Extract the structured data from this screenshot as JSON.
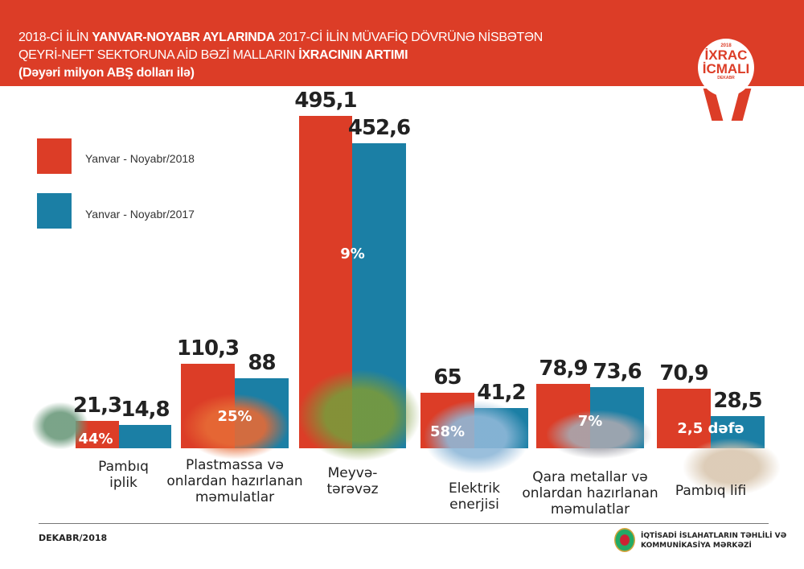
{
  "header": {
    "line1_a": "2018-Cİ İLİN ",
    "line1_b": "YANVAR-NOYABR AYLARINDA",
    "line1_c": "  2017-Cİ İLİN MÜVAFİQ DÖVRÜNƏ NİSBƏTƏN",
    "line2_a": "QEYRİ-NEFT SEKTORUNA AİD BƏZİ MALLARIN ",
    "line2_b": "İXRACININ ARTIMI",
    "line3": "(Dəyəri milyon ABŞ dolları ilə)",
    "badge": {
      "year": "2018",
      "line1": "İXRAC",
      "line2": "İCMALI",
      "sub": "DEKABR"
    }
  },
  "colors": {
    "s2018": "#dc3d27",
    "s2017": "#1b7fa5",
    "header": "#dc3d27"
  },
  "chart_data": {
    "type": "bar",
    "title": "2018-Cİ İLİN YANVAR-NOYABR AYLARINDA 2017-Cİ İLİN MÜVAFİQ DÖVRÜNƏ NİSBƏTƏN QEYRİ-NEFT SEKTORUNA AİD BƏZİ MALLARIN İXRACININ ARTIMI",
    "ylabel": "Dəyəri milyon ABŞ dolları ilə",
    "legend_position": "top-left",
    "grid": false,
    "categories": [
      "Pambıq\niplik",
      "Plastmassa və\nonlardan hazırlanan\nməmulatlar",
      "Meyvə-\ntərəvəz",
      "Elektrik\nenerjisi",
      "Qara metallar və\nonlardan hazırlanan\nməmulatlar",
      "Pambıq lifi"
    ],
    "series": [
      {
        "name": "Yanvar - Noyabr/2018",
        "values": [
          21.3,
          110.3,
          495.1,
          65,
          78.9,
          70.9
        ],
        "labels": [
          "21,3",
          "110,3",
          "495,1",
          "65",
          "78,9",
          "70,9"
        ]
      },
      {
        "name": "Yanvar - Noyabr/2017",
        "values": [
          14.8,
          88,
          452.6,
          41.2,
          73.6,
          28.5
        ],
        "labels": [
          "14,8",
          "88",
          "452,6",
          "41,2",
          "73,6",
          "28,5"
        ]
      }
    ],
    "growth_labels": [
      "44%",
      "25%",
      "9%",
      "58%",
      "7%",
      "2,5 dəfə"
    ]
  },
  "footer": {
    "date": "DEKABR/2018",
    "org_line1": "İQTİSADİ İSLAHATLARIN TƏHLİLİ VƏ",
    "org_line2": "KOMMUNİKASİYA MƏRKƏZİ"
  }
}
